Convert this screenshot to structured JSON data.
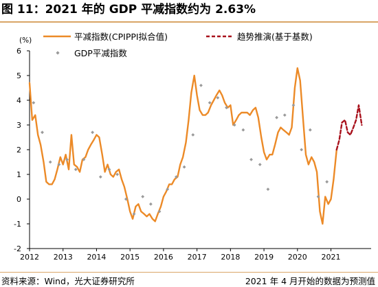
{
  "header": {
    "title": "图 11：2021 年的 GDP 平减指数约为 2.63%"
  },
  "footer": {
    "source": "资料来源：Wind，光大证券研究所",
    "note": "2021 年 4 月开始的数据为预测值"
  },
  "colors": {
    "fitted": "#ec8a27",
    "forecast": "#a8111c",
    "gdp": "#9a9a9a",
    "rule": "#d9a566"
  },
  "chart_data": {
    "type": "line",
    "ylabel": "(%)",
    "ylim": [
      -2,
      6
    ],
    "yticks": [
      -2,
      -1,
      0,
      1,
      2,
      3,
      4,
      5,
      6
    ],
    "xlim": [
      2012,
      2022.2
    ],
    "xticks": [
      2012,
      2013,
      2014,
      2015,
      2016,
      2017,
      2018,
      2019,
      2020,
      2021
    ],
    "xticklabels": [
      "2012",
      "2013",
      "2014",
      "2015",
      "2016",
      "2017",
      "2018",
      "2019",
      "2020",
      "2021"
    ],
    "legend": {
      "placement": "top"
    },
    "series": [
      {
        "name": "平减指数(CPIPPI拟合值)",
        "style": "solid",
        "x": [
          2012.0,
          2012.08,
          2012.17,
          2012.25,
          2012.33,
          2012.42,
          2012.5,
          2012.58,
          2012.67,
          2012.75,
          2012.83,
          2012.92,
          2013.0,
          2013.08,
          2013.17,
          2013.25,
          2013.33,
          2013.42,
          2013.5,
          2013.58,
          2013.67,
          2013.75,
          2013.83,
          2013.92,
          2014.0,
          2014.08,
          2014.17,
          2014.25,
          2014.33,
          2014.42,
          2014.5,
          2014.58,
          2014.67,
          2014.75,
          2014.83,
          2014.92,
          2015.0,
          2015.08,
          2015.17,
          2015.25,
          2015.33,
          2015.42,
          2015.5,
          2015.58,
          2015.67,
          2015.75,
          2015.83,
          2015.92,
          2016.0,
          2016.08,
          2016.17,
          2016.25,
          2016.33,
          2016.42,
          2016.5,
          2016.58,
          2016.67,
          2016.75,
          2016.83,
          2016.92,
          2017.0,
          2017.08,
          2017.17,
          2017.25,
          2017.33,
          2017.42,
          2017.5,
          2017.58,
          2017.67,
          2017.75,
          2017.83,
          2017.92,
          2018.0,
          2018.08,
          2018.17,
          2018.25,
          2018.33,
          2018.42,
          2018.5,
          2018.58,
          2018.67,
          2018.75,
          2018.83,
          2018.92,
          2019.0,
          2019.08,
          2019.17,
          2019.25,
          2019.33,
          2019.42,
          2019.5,
          2019.58,
          2019.67,
          2019.75,
          2019.83,
          2019.92,
          2020.0,
          2020.08,
          2020.17,
          2020.25,
          2020.33,
          2020.42,
          2020.5,
          2020.58,
          2020.67,
          2020.75,
          2020.83,
          2020.92,
          2021.0,
          2021.08,
          2021.17
        ],
        "y": [
          4.7,
          3.2,
          3.4,
          2.6,
          2.2,
          1.5,
          0.7,
          0.6,
          0.6,
          0.8,
          1.2,
          1.7,
          1.4,
          1.8,
          1.2,
          2.6,
          1.4,
          1.3,
          1.1,
          1.6,
          1.7,
          2.0,
          2.2,
          2.4,
          2.6,
          2.5,
          1.8,
          1.1,
          1.4,
          1.0,
          0.9,
          1.1,
          1.2,
          0.8,
          0.5,
          0.0,
          -0.5,
          -0.8,
          -0.3,
          -0.2,
          -0.5,
          -0.6,
          -0.7,
          -0.6,
          -0.8,
          -0.9,
          -0.6,
          -0.3,
          0.1,
          0.3,
          0.6,
          0.6,
          0.8,
          0.9,
          1.4,
          1.7,
          2.3,
          3.2,
          4.3,
          5.0,
          4.2,
          3.6,
          3.4,
          3.4,
          3.5,
          3.8,
          4.0,
          4.2,
          4.4,
          4.2,
          3.9,
          3.7,
          3.8,
          3.0,
          3.2,
          3.4,
          3.5,
          3.5,
          3.5,
          3.4,
          3.6,
          3.7,
          3.3,
          2.5,
          1.9,
          1.6,
          1.8,
          1.8,
          2.2,
          2.7,
          2.9,
          2.8,
          2.7,
          2.6,
          2.9,
          4.5,
          5.3,
          4.8,
          3.2,
          1.8,
          1.4,
          1.7,
          1.5,
          1.1,
          -0.5,
          -1.0,
          0.1,
          -0.2,
          0.0,
          0.8,
          2.0
        ]
      },
      {
        "name": "趋势推演(基于基数)",
        "style": "dashed",
        "x": [
          2021.17,
          2021.25,
          2021.33,
          2021.42,
          2021.5,
          2021.58,
          2021.67,
          2021.75,
          2021.83,
          2021.92
        ],
        "y": [
          2.0,
          2.4,
          3.1,
          3.2,
          2.7,
          2.6,
          2.9,
          3.2,
          3.8,
          3.0
        ]
      },
      {
        "name": "GDP平减指数",
        "style": "markers",
        "x": [
          2012.12,
          2012.38,
          2012.62,
          2012.88,
          2013.12,
          2013.38,
          2013.62,
          2013.88,
          2014.12,
          2014.38,
          2014.62,
          2014.88,
          2015.12,
          2015.38,
          2015.62,
          2015.88,
          2016.12,
          2016.38,
          2016.62,
          2016.88,
          2017.12,
          2017.38,
          2017.62,
          2017.88,
          2018.12,
          2018.38,
          2018.62,
          2018.88,
          2019.12,
          2019.38,
          2019.62,
          2019.88,
          2020.12,
          2020.38,
          2020.62,
          2020.88
        ],
        "y": [
          3.9,
          2.7,
          1.5,
          1.4,
          1.6,
          1.2,
          1.6,
          2.7,
          0.9,
          1.2,
          1.0,
          0.0,
          -0.6,
          0.1,
          -0.2,
          -0.5,
          0.4,
          0.9,
          1.3,
          2.6,
          4.6,
          3.9,
          4.1,
          3.7,
          3.0,
          2.8,
          1.6,
          1.4,
          0.4,
          3.3,
          3.4,
          3.8,
          2.0,
          2.8,
          0.1,
          0.7
        ]
      }
    ]
  }
}
